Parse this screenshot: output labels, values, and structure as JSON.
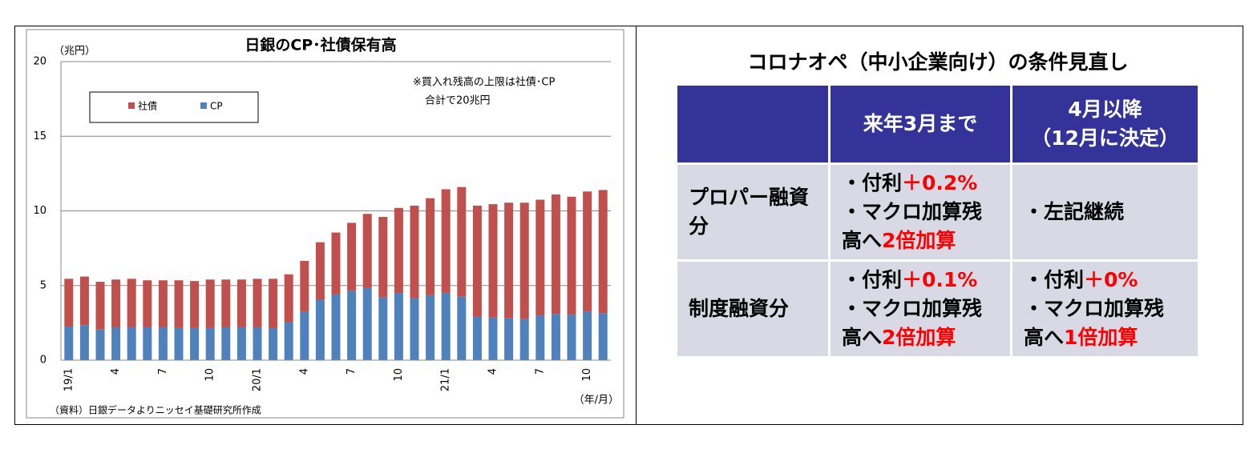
{
  "chart_data": {
    "type": "bar",
    "stacked": true,
    "title": "日銀のCP･社債保有高",
    "y_label": "（兆円）",
    "x_label": "（年/月）",
    "source": "（資料）日銀データよりニッセイ基礎研究所作成",
    "annotation": [
      "※買入れ残高の上限は社債･CP",
      "合計で20兆円"
    ],
    "categories": [
      "19/1",
      null,
      null,
      "4",
      null,
      null,
      "7",
      null,
      null,
      "10",
      null,
      null,
      "20/1",
      null,
      null,
      "4",
      null,
      null,
      "7",
      null,
      null,
      "10",
      null,
      null,
      "21/1",
      null,
      null,
      "4",
      null,
      null,
      "7",
      null,
      null,
      "10",
      null
    ],
    "series": [
      {
        "name": "CP",
        "color": "#4f81bd",
        "values": [
          2.25,
          2.35,
          2.05,
          2.2,
          2.2,
          2.2,
          2.2,
          2.15,
          2.15,
          2.15,
          2.2,
          2.2,
          2.2,
          2.15,
          2.55,
          3.25,
          4.05,
          4.4,
          4.65,
          4.85,
          4.2,
          4.5,
          4.15,
          4.35,
          4.5,
          4.25,
          2.9,
          2.85,
          2.8,
          2.75,
          3.0,
          3.1,
          3.05,
          3.25,
          3.15
        ]
      },
      {
        "name": "社債",
        "color": "#c0504d",
        "values": [
          3.2,
          3.25,
          3.2,
          3.2,
          3.25,
          3.15,
          3.15,
          3.2,
          3.15,
          3.25,
          3.2,
          3.2,
          3.25,
          3.3,
          3.2,
          3.4,
          3.85,
          4.15,
          4.55,
          4.95,
          5.4,
          5.7,
          6.2,
          6.5,
          6.95,
          7.35,
          7.45,
          7.6,
          7.75,
          7.8,
          7.75,
          8.0,
          7.9,
          8.05,
          8.25
        ]
      }
    ],
    "ylim": [
      0,
      20
    ],
    "yticks": [
      0,
      5,
      10,
      15,
      20
    ],
    "grid": true
  },
  "table": {
    "title": "コロナオペ（中小企業向け）の条件見直し",
    "columns": [
      [
        "来年3月まで"
      ],
      [
        "4月以降",
        "（12月に決定）"
      ]
    ],
    "rows": [
      {
        "label": "プロパー融資分",
        "cells": [
          [
            {
              "text": "・付利",
              "highlight": "＋0.2%"
            },
            {
              "text": "・マクロ加算残高へ",
              "highlight": "2倍加算"
            }
          ],
          [
            {
              "text": "・左記継続"
            }
          ]
        ]
      },
      {
        "label": "制度融資分",
        "cells": [
          [
            {
              "text": "・付利",
              "highlight": "＋0.1%"
            },
            {
              "text": "・マクロ加算残高へ",
              "highlight": "2倍加算"
            }
          ],
          [
            {
              "text": "・付利",
              "highlight": "＋0%"
            },
            {
              "text": "・マクロ加算残高へ",
              "highlight": "1倍加算"
            }
          ]
        ]
      }
    ]
  }
}
